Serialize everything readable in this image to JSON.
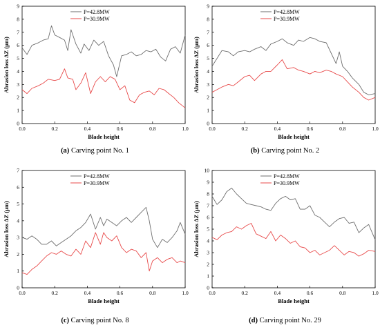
{
  "figure": {
    "panels": [
      {
        "tag": "(a)",
        "caption": "Carving point No. 1"
      },
      {
        "tag": "(b)",
        "caption": "Carving point No. 2"
      },
      {
        "tag": "(c)",
        "caption": "Carving point No. 8"
      },
      {
        "tag": "(d)",
        "caption": "Carving point No. 29"
      }
    ]
  },
  "chart_data": [
    {
      "type": "line",
      "xlabel": "Blade height",
      "ylabel": "Abrasion loss ΔZ (μm)",
      "xlim": [
        0,
        1
      ],
      "ylim": [
        0,
        9
      ],
      "xticks": [
        "0.0",
        "0.2",
        "0.4",
        "0.6",
        "0.8",
        "1.0"
      ],
      "yticks": [
        "0",
        "1",
        "2",
        "3",
        "4",
        "5",
        "6",
        "7",
        "8",
        "9"
      ],
      "legend": "top",
      "series": [
        {
          "name": "P=42.8MW",
          "color": "#6e6e6e",
          "x": [
            0,
            0.03,
            0.06,
            0.1,
            0.13,
            0.16,
            0.18,
            0.2,
            0.23,
            0.26,
            0.28,
            0.3,
            0.33,
            0.36,
            0.38,
            0.41,
            0.44,
            0.47,
            0.5,
            0.53,
            0.56,
            0.58,
            0.61,
            0.64,
            0.67,
            0.7,
            0.73,
            0.76,
            0.79,
            0.82,
            0.85,
            0.88,
            0.91,
            0.94,
            0.97,
            1.0
          ],
          "y": [
            5.8,
            5.3,
            6.0,
            6.2,
            6.4,
            6.5,
            7.5,
            6.8,
            6.6,
            6.4,
            5.6,
            7.2,
            6.1,
            5.4,
            6.1,
            5.6,
            6.4,
            6.0,
            6.3,
            5.2,
            4.5,
            3.6,
            5.2,
            5.3,
            5.5,
            5.2,
            5.3,
            5.6,
            5.5,
            5.7,
            5.1,
            4.8,
            5.7,
            5.9,
            5.4,
            6.8
          ]
        },
        {
          "name": "P=30.9MW",
          "color": "#e84a4a",
          "x": [
            0,
            0.03,
            0.06,
            0.1,
            0.13,
            0.16,
            0.2,
            0.23,
            0.26,
            0.28,
            0.31,
            0.33,
            0.36,
            0.39,
            0.42,
            0.45,
            0.48,
            0.51,
            0.54,
            0.57,
            0.6,
            0.63,
            0.66,
            0.69,
            0.72,
            0.75,
            0.78,
            0.81,
            0.84,
            0.87,
            0.9,
            0.93,
            0.96,
            1.0
          ],
          "y": [
            2.6,
            2.3,
            2.7,
            2.9,
            3.1,
            3.4,
            3.3,
            3.4,
            4.2,
            3.5,
            3.4,
            2.6,
            3.1,
            3.9,
            2.3,
            3.2,
            3.6,
            3.2,
            3.6,
            3.4,
            2.6,
            2.9,
            1.8,
            1.6,
            2.2,
            2.4,
            2.5,
            2.2,
            2.7,
            2.6,
            2.3,
            2.0,
            1.6,
            1.2
          ]
        }
      ]
    },
    {
      "type": "line",
      "xlabel": "Blade height",
      "ylabel": "Abrasion loss ΔZ (μm)",
      "xlim": [
        0,
        1
      ],
      "ylim": [
        0,
        9
      ],
      "xticks": [
        "0.0",
        "0.2",
        "0.4",
        "0.6",
        "0.8",
        "1.0"
      ],
      "yticks": [
        "0",
        "1",
        "2",
        "3",
        "4",
        "5",
        "6",
        "7",
        "8",
        "9"
      ],
      "legend": "top",
      "series": [
        {
          "name": "P=42.8MW",
          "color": "#6e6e6e",
          "x": [
            0,
            0.03,
            0.06,
            0.1,
            0.13,
            0.16,
            0.2,
            0.23,
            0.26,
            0.3,
            0.33,
            0.36,
            0.4,
            0.43,
            0.46,
            0.5,
            0.53,
            0.56,
            0.6,
            0.63,
            0.66,
            0.7,
            0.73,
            0.76,
            0.78,
            0.8,
            0.83,
            0.86,
            0.9,
            0.93,
            0.96,
            1.0
          ],
          "y": [
            4.4,
            5.0,
            5.6,
            5.5,
            5.2,
            5.5,
            5.6,
            5.5,
            5.7,
            5.9,
            5.6,
            6.1,
            6.3,
            6.5,
            6.2,
            6.0,
            6.4,
            6.3,
            6.6,
            6.5,
            6.3,
            6.2,
            5.4,
            4.6,
            5.5,
            4.4,
            4.0,
            3.5,
            3.0,
            2.4,
            2.2,
            2.3
          ]
        },
        {
          "name": "P=30.9MW",
          "color": "#e84a4a",
          "x": [
            0,
            0.03,
            0.06,
            0.1,
            0.13,
            0.16,
            0.2,
            0.23,
            0.26,
            0.3,
            0.33,
            0.36,
            0.4,
            0.43,
            0.46,
            0.5,
            0.53,
            0.56,
            0.6,
            0.63,
            0.66,
            0.7,
            0.73,
            0.76,
            0.8,
            0.83,
            0.86,
            0.9,
            0.93,
            0.96,
            1.0
          ],
          "y": [
            2.4,
            2.6,
            2.8,
            3.0,
            2.9,
            3.2,
            3.6,
            3.7,
            3.3,
            3.8,
            4.0,
            4.0,
            4.5,
            4.9,
            4.2,
            4.3,
            4.1,
            4.0,
            3.8,
            4.0,
            3.9,
            4.1,
            4.0,
            3.8,
            3.6,
            3.2,
            2.8,
            2.4,
            2.0,
            1.8,
            2.0
          ]
        }
      ]
    },
    {
      "type": "line",
      "xlabel": "Blade height",
      "ylabel": "Abrasion loss ΔZ (μm)",
      "xlim": [
        0,
        1
      ],
      "ylim": [
        0,
        7
      ],
      "xticks": [
        "0.0",
        "0.2",
        "0.4",
        "0.6",
        "0.8",
        "1.0"
      ],
      "yticks": [
        "0",
        "1",
        "2",
        "3",
        "4",
        "5",
        "6",
        "7"
      ],
      "legend": "top",
      "series": [
        {
          "name": "P=42.8MW",
          "color": "#6e6e6e",
          "x": [
            0,
            0.03,
            0.06,
            0.09,
            0.12,
            0.15,
            0.18,
            0.21,
            0.24,
            0.27,
            0.3,
            0.33,
            0.36,
            0.39,
            0.42,
            0.45,
            0.48,
            0.5,
            0.52,
            0.55,
            0.58,
            0.61,
            0.64,
            0.67,
            0.7,
            0.73,
            0.76,
            0.78,
            0.8,
            0.83,
            0.86,
            0.89,
            0.92,
            0.95,
            0.97,
            1.0
          ],
          "y": [
            3.0,
            2.9,
            3.1,
            2.9,
            2.6,
            2.6,
            2.8,
            2.5,
            2.7,
            2.9,
            3.1,
            3.4,
            3.6,
            3.9,
            4.4,
            3.5,
            4.2,
            3.7,
            4.1,
            3.9,
            3.7,
            4.0,
            4.2,
            3.9,
            4.2,
            4.5,
            4.8,
            4.0,
            2.9,
            2.4,
            2.9,
            2.7,
            3.0,
            3.4,
            3.9,
            3.2
          ]
        },
        {
          "name": "P=30.9MW",
          "color": "#e84a4a",
          "x": [
            0,
            0.03,
            0.06,
            0.09,
            0.12,
            0.15,
            0.18,
            0.21,
            0.24,
            0.27,
            0.3,
            0.33,
            0.36,
            0.39,
            0.42,
            0.45,
            0.48,
            0.5,
            0.52,
            0.55,
            0.58,
            0.61,
            0.64,
            0.67,
            0.7,
            0.73,
            0.76,
            0.78,
            0.8,
            0.83,
            0.86,
            0.89,
            0.92,
            0.95,
            0.97,
            1.0
          ],
          "y": [
            0.9,
            0.8,
            1.1,
            1.3,
            1.6,
            1.9,
            2.1,
            2.0,
            2.2,
            2.0,
            1.9,
            2.3,
            2.0,
            2.8,
            2.4,
            3.3,
            2.6,
            3.3,
            3.0,
            2.8,
            3.1,
            2.4,
            2.1,
            2.3,
            2.2,
            1.8,
            2.1,
            1.0,
            1.6,
            1.8,
            1.5,
            1.7,
            1.8,
            1.5,
            1.6,
            1.5
          ]
        }
      ]
    },
    {
      "type": "line",
      "xlabel": "Blade height",
      "ylabel": "Abrasion loss ΔZ (μm)",
      "xlim": [
        0,
        1
      ],
      "ylim": [
        0,
        10
      ],
      "xticks": [
        "0.0",
        "0.2",
        "0.4",
        "0.6",
        "0.8",
        "1.0"
      ],
      "yticks": [
        "0",
        "1",
        "2",
        "3",
        "4",
        "5",
        "6",
        "7",
        "8",
        "9",
        "10"
      ],
      "legend": "top",
      "series": [
        {
          "name": "P=42.8MW",
          "color": "#6e6e6e",
          "x": [
            0,
            0.03,
            0.06,
            0.09,
            0.12,
            0.15,
            0.18,
            0.21,
            0.24,
            0.27,
            0.3,
            0.33,
            0.36,
            0.39,
            0.42,
            0.45,
            0.48,
            0.51,
            0.54,
            0.57,
            0.6,
            0.63,
            0.66,
            0.69,
            0.72,
            0.75,
            0.78,
            0.81,
            0.84,
            0.87,
            0.9,
            0.93,
            0.96,
            1.0
          ],
          "y": [
            7.8,
            7.1,
            7.5,
            8.2,
            8.5,
            8.0,
            7.6,
            7.2,
            7.1,
            7.0,
            6.9,
            6.7,
            6.6,
            7.2,
            7.6,
            7.8,
            7.5,
            7.6,
            6.7,
            6.7,
            7.0,
            6.2,
            6.0,
            5.6,
            5.2,
            5.6,
            5.9,
            6.0,
            5.5,
            5.6,
            4.7,
            5.1,
            5.4,
            4.1
          ]
        },
        {
          "name": "P=30.9MW",
          "color": "#e84a4a",
          "x": [
            0,
            0.03,
            0.06,
            0.09,
            0.12,
            0.15,
            0.18,
            0.21,
            0.24,
            0.27,
            0.3,
            0.33,
            0.36,
            0.39,
            0.42,
            0.45,
            0.48,
            0.51,
            0.54,
            0.57,
            0.6,
            0.63,
            0.66,
            0.69,
            0.72,
            0.75,
            0.78,
            0.81,
            0.84,
            0.87,
            0.9,
            0.93,
            0.96,
            1.0
          ],
          "y": [
            4.3,
            4.1,
            4.5,
            4.7,
            4.8,
            5.2,
            5.0,
            5.3,
            5.5,
            4.6,
            4.4,
            4.2,
            4.8,
            4.0,
            4.5,
            4.2,
            3.8,
            4.0,
            3.5,
            3.4,
            3.0,
            3.2,
            2.8,
            3.0,
            3.2,
            3.6,
            3.2,
            2.8,
            3.1,
            3.0,
            2.7,
            2.9,
            3.2,
            3.1
          ]
        }
      ]
    }
  ]
}
